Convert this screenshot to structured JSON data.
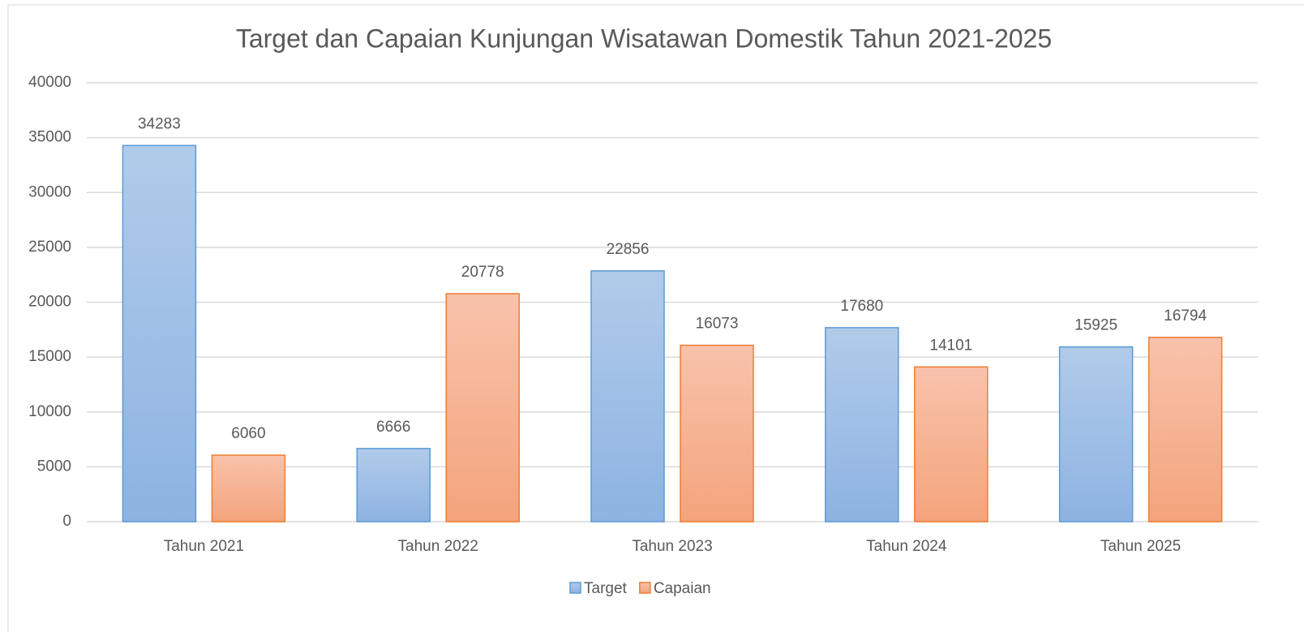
{
  "chart_data": {
    "type": "bar",
    "title": "Target dan Capaian Kunjungan Wisatawan Domestik Tahun 2021-2025",
    "categories": [
      "Tahun 2021",
      "Tahun 2022",
      "Tahun 2023",
      "Tahun 2024",
      "Tahun 2025"
    ],
    "series": [
      {
        "name": "Target",
        "color": "#5b9bd5",
        "values": [
          34283,
          6666,
          22856,
          17680,
          15925
        ]
      },
      {
        "name": "Capaian",
        "color": "#ed7d31",
        "values": [
          6060,
          20778,
          16073,
          14101,
          16794
        ]
      }
    ],
    "ylim": [
      0,
      40000
    ],
    "yticks": [
      0,
      5000,
      10000,
      15000,
      20000,
      25000,
      30000,
      35000,
      40000
    ],
    "grid": true,
    "legend": "bottom"
  }
}
